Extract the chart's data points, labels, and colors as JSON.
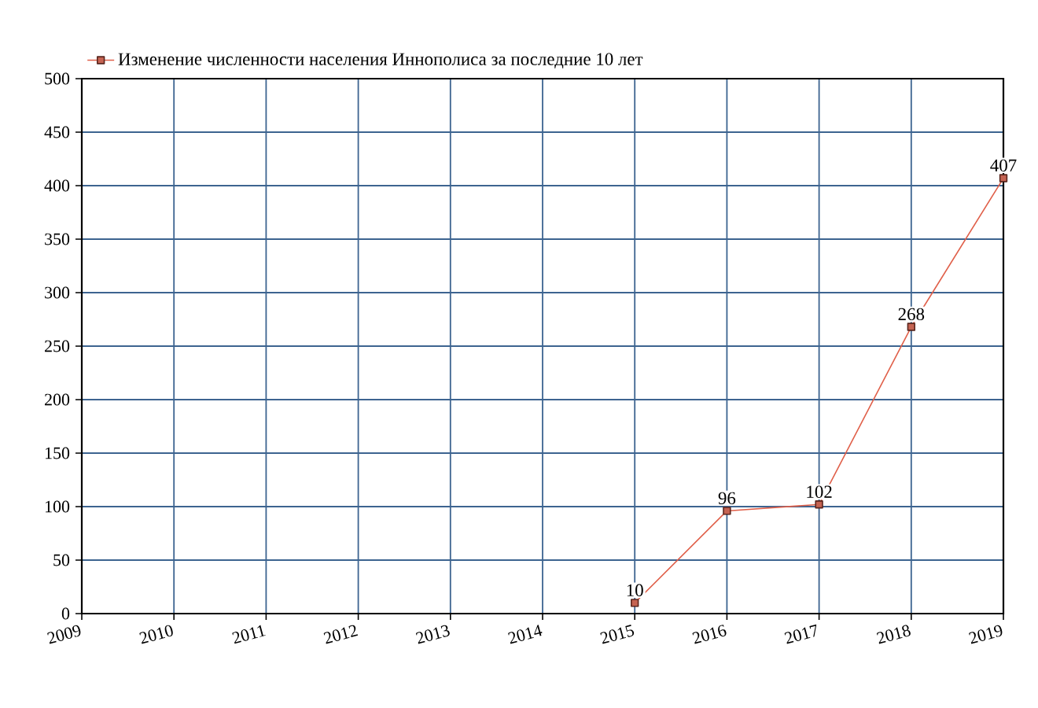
{
  "chart_data": {
    "type": "line",
    "x": [
      2015,
      2016,
      2017,
      2018,
      2019
    ],
    "series": [
      {
        "name": "Изменение численности населения Иннополиса за последние 10 лет",
        "color": "#e0604a",
        "values": [
          10,
          96,
          102,
          268,
          407
        ]
      }
    ],
    "xlim": [
      2009,
      2019
    ],
    "xticks": [
      2009,
      2010,
      2011,
      2012,
      2013,
      2014,
      2015,
      2016,
      2017,
      2018,
      2019
    ],
    "ylim": [
      0,
      500
    ],
    "yticks": [
      0,
      50,
      100,
      150,
      200,
      250,
      300,
      350,
      400,
      450,
      500
    ],
    "grid": true,
    "legend": "top left",
    "marker": "square",
    "line_style": "solid",
    "data_labels": true
  }
}
